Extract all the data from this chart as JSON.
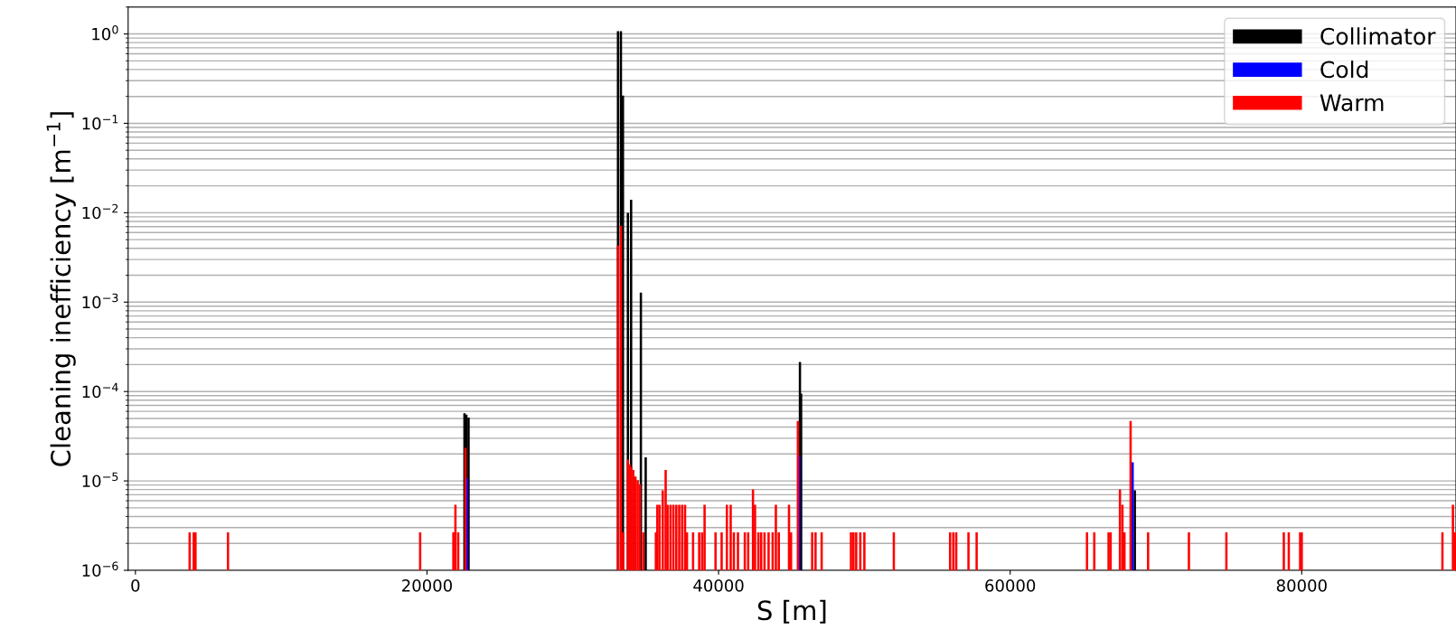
{
  "chart_data": {
    "type": "bar",
    "xlabel": "S [m]",
    "ylabel": "Cleaning inefficiency [m$^{−1}$]",
    "log": "y",
    "grid": "y",
    "legend": "top right",
    "xlim": [
      -500,
      90580
    ],
    "xticks": [
      0,
      20000,
      40000,
      60000,
      80000
    ],
    "ylim": [
      1e-06,
      2
    ],
    "yticks": [
      {
        "value": 1e-06,
        "label": "10$^{−6}$"
      },
      {
        "value": 1e-05,
        "label": "10$^{−5}$"
      },
      {
        "value": 0.0001,
        "label": "10$^{−4}$"
      },
      {
        "value": 0.001,
        "label": "10$^{−3}$"
      },
      {
        "value": 0.01,
        "label": "10$^{−2}$"
      },
      {
        "value": 0.1,
        "label": "10$^{−1}$"
      },
      {
        "value": 1,
        "label": "10$^{0}$"
      }
    ],
    "series": [
      {
        "name": "Collimator",
        "color": "#000000",
        "x": [
          22570,
          22700,
          22850,
          33100,
          33300,
          33440,
          33780,
          34000,
          34670,
          35000,
          45580,
          45660,
          68550
        ],
        "values": [
          5.6e-05,
          5.4e-05,
          5e-05,
          1.05,
          1.05,
          0.2,
          0.0098,
          0.0137,
          0.00125,
          1.8e-05,
          0.00021,
          9.3e-05,
          7.7e-06
        ]
      },
      {
        "name": "Cold",
        "color": "#0000ff",
        "x": [
          22760,
          45530,
          68400
        ],
        "values": [
          1.05e-05,
          1.9e-05,
          1.58e-05
        ]
      },
      {
        "name": "Warm",
        "color": "#ff0000",
        "x": [
          3720,
          4000,
          4120,
          6350,
          19530,
          21810,
          21950,
          22140,
          22640,
          33100,
          33300,
          33450,
          33780,
          33900,
          34000,
          34150,
          34300,
          34450,
          34600,
          34840,
          35700,
          35800,
          35950,
          36170,
          36370,
          36500,
          36700,
          36900,
          37100,
          37300,
          37500,
          37700,
          37830,
          38250,
          38670,
          38870,
          39040,
          39790,
          40210,
          40570,
          40830,
          41050,
          41330,
          41800,
          42030,
          42360,
          42500,
          42730,
          42920,
          43150,
          43430,
          43710,
          43930,
          44130,
          44830,
          44970,
          45440,
          46420,
          46650,
          47070,
          49080,
          49250,
          49440,
          49720,
          50000,
          52020,
          55880,
          56100,
          56300,
          57140,
          57700,
          65270,
          65770,
          66750,
          66890,
          67530,
          67700,
          67840,
          68260,
          69460,
          72260,
          74830,
          78770,
          79110,
          79890,
          80000,
          89650,
          90370,
          90500
        ],
        "values": [
          2.6e-06,
          2.6e-06,
          2.6e-06,
          2.6e-06,
          2.6e-06,
          2.6e-06,
          5.3e-06,
          2.6e-06,
          2.3e-05,
          0.0042,
          0.007,
          2.6e-06,
          1.7e-05,
          1.5e-05,
          1.4e-05,
          1.3e-05,
          1.1e-05,
          1e-05,
          9e-06,
          2.6e-06,
          2.6e-06,
          5.3e-06,
          5.3e-06,
          7.7e-06,
          1.3e-05,
          5.3e-06,
          5.3e-06,
          5.3e-06,
          5.3e-06,
          5.3e-06,
          5.3e-06,
          5.3e-06,
          2.6e-06,
          2.6e-06,
          2.6e-06,
          2.6e-06,
          5.3e-06,
          2.6e-06,
          2.6e-06,
          5.3e-06,
          5.3e-06,
          2.6e-06,
          2.6e-06,
          2.6e-06,
          2.6e-06,
          7.9e-06,
          5.3e-06,
          2.6e-06,
          2.6e-06,
          2.6e-06,
          2.6e-06,
          2.6e-06,
          5.3e-06,
          2.6e-06,
          5.3e-06,
          2.6e-06,
          4.6e-05,
          2.6e-06,
          2.6e-06,
          2.6e-06,
          2.6e-06,
          2.6e-06,
          2.6e-06,
          2.6e-06,
          2.6e-06,
          2.6e-06,
          2.6e-06,
          2.6e-06,
          2.6e-06,
          2.6e-06,
          2.6e-06,
          2.6e-06,
          2.6e-06,
          2.6e-06,
          2.6e-06,
          7.9e-06,
          5.3e-06,
          2.6e-06,
          4.6e-05,
          2.6e-06,
          2.6e-06,
          2.6e-06,
          2.6e-06,
          2.6e-06,
          2.6e-06,
          2.6e-06,
          2.6e-06,
          5.3e-06,
          2.6e-06
        ]
      }
    ]
  }
}
